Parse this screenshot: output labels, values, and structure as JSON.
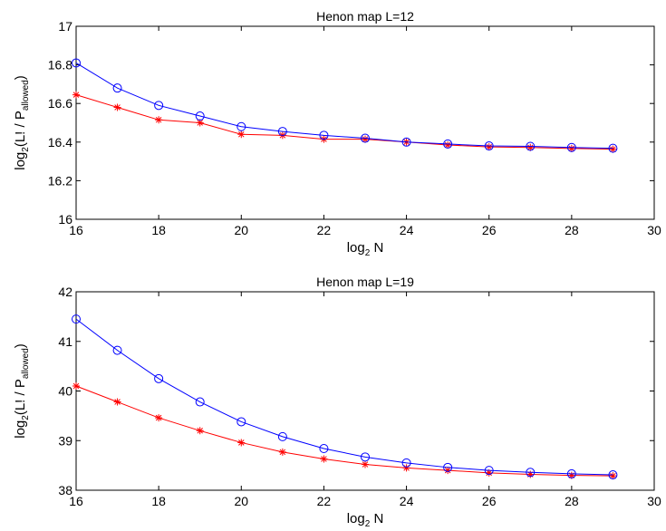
{
  "chart_data": [
    {
      "type": "line",
      "title": "Henon map L=12",
      "xlabel": "N",
      "xlabel_prefix": "log",
      "xlabel_sub": "2",
      "ylabel": {
        "prefix": "log",
        "prefix_sub": "2",
        "open": "(L! / P",
        "p_sub": "allowed",
        "close": ")"
      },
      "xlim": [
        16,
        30
      ],
      "ylim": [
        16,
        17
      ],
      "xticks": [
        16,
        18,
        20,
        22,
        24,
        26,
        28,
        30
      ],
      "yticks": [
        16,
        16.2,
        16.4,
        16.6,
        16.8,
        17
      ],
      "ytick_labels": [
        "16",
        "16.2",
        "16.4",
        "16.6",
        "16.8",
        "17"
      ],
      "grid": false,
      "x": [
        16,
        17,
        18,
        19,
        20,
        21,
        22,
        23,
        24,
        25,
        26,
        27,
        28,
        29
      ],
      "series": [
        {
          "color": "#0000ff",
          "marker": "circle",
          "values": [
            16.81,
            16.68,
            16.59,
            16.535,
            16.48,
            16.455,
            16.435,
            16.42,
            16.4,
            16.39,
            16.38,
            16.378,
            16.372,
            16.368
          ]
        },
        {
          "color": "#ff0000",
          "marker": "star",
          "values": [
            16.645,
            16.58,
            16.515,
            16.5,
            16.44,
            16.435,
            16.415,
            16.415,
            16.4,
            16.385,
            16.375,
            16.372,
            16.367,
            16.363
          ]
        }
      ]
    },
    {
      "type": "line",
      "title": "Henon map L=19",
      "xlabel": "N",
      "xlabel_prefix": "log",
      "xlabel_sub": "2",
      "ylabel": {
        "prefix": "log",
        "prefix_sub": "2",
        "open": "(L! / P",
        "p_sub": "allowed",
        "close": ")"
      },
      "xlim": [
        16,
        30
      ],
      "ylim": [
        38,
        42
      ],
      "xticks": [
        16,
        18,
        20,
        22,
        24,
        26,
        28,
        30
      ],
      "yticks": [
        38,
        39,
        40,
        41,
        42
      ],
      "ytick_labels": [
        "38",
        "39",
        "40",
        "41",
        "42"
      ],
      "grid": false,
      "x": [
        16,
        17,
        18,
        19,
        20,
        21,
        22,
        23,
        24,
        25,
        26,
        27,
        28,
        29
      ],
      "series": [
        {
          "color": "#0000ff",
          "marker": "circle",
          "values": [
            41.45,
            40.82,
            40.25,
            39.78,
            39.38,
            39.08,
            38.84,
            38.67,
            38.55,
            38.46,
            38.4,
            38.36,
            38.33,
            38.31
          ]
        },
        {
          "color": "#ff0000",
          "marker": "star",
          "values": [
            40.1,
            39.78,
            39.46,
            39.2,
            38.96,
            38.77,
            38.63,
            38.52,
            38.45,
            38.4,
            38.35,
            38.32,
            38.3,
            38.29
          ]
        }
      ]
    }
  ]
}
